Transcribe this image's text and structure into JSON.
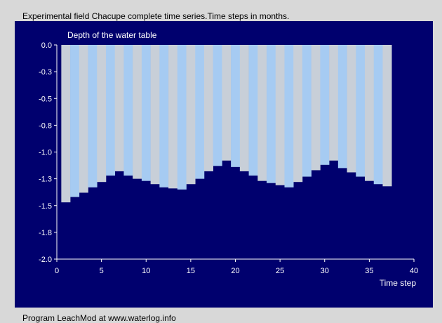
{
  "header": {
    "caption": "Experimental field Chacupe complete time series.Time steps in months."
  },
  "footer": {
    "text": "Program LeachMod at www.waterlog.info"
  },
  "colors": {
    "panel_background": "#00006e",
    "band_light": "#c8cfd8",
    "band_blue": "#a6cbf2",
    "axis": "#ffffff",
    "text": "#ffffff"
  },
  "chart_data": {
    "type": "bar",
    "title": "Depth of the water table",
    "xlabel": "Time step",
    "ylabel": "",
    "x": [
      1,
      2,
      3,
      4,
      5,
      6,
      7,
      8,
      9,
      10,
      11,
      12,
      13,
      14,
      15,
      16,
      17,
      18,
      19,
      20,
      21,
      22,
      23,
      24,
      25,
      26,
      27,
      28,
      29,
      30,
      31,
      32,
      33,
      34,
      35,
      36,
      37
    ],
    "values": [
      -1.47,
      -1.42,
      -1.38,
      -1.33,
      -1.28,
      -1.22,
      -1.18,
      -1.22,
      -1.25,
      -1.27,
      -1.3,
      -1.33,
      -1.34,
      -1.35,
      -1.3,
      -1.25,
      -1.18,
      -1.13,
      -1.08,
      -1.14,
      -1.18,
      -1.22,
      -1.27,
      -1.29,
      -1.31,
      -1.33,
      -1.28,
      -1.23,
      -1.17,
      -1.12,
      -1.08,
      -1.15,
      -1.19,
      -1.23,
      -1.27,
      -1.3,
      -1.32
    ],
    "xlim": [
      0,
      40
    ],
    "ylim": [
      -2.0,
      0.0
    ],
    "xticks": [
      0,
      5,
      10,
      15,
      20,
      25,
      30,
      35,
      40
    ],
    "xtick_labels": [
      "0",
      "5",
      "10",
      "15",
      "20",
      "25",
      "30",
      "35",
      "40"
    ],
    "yticks": [
      0.0,
      -0.25,
      -0.5,
      -0.75,
      -1.0,
      -1.25,
      -1.5,
      -1.75,
      -2.0
    ],
    "ytick_labels": [
      "0.0",
      "-0.3",
      "-0.5",
      "-0.8",
      "-1.0",
      "-1.3",
      "-1.5",
      "-1.8",
      "-2.0"
    ],
    "grid": false,
    "legend": "none"
  }
}
